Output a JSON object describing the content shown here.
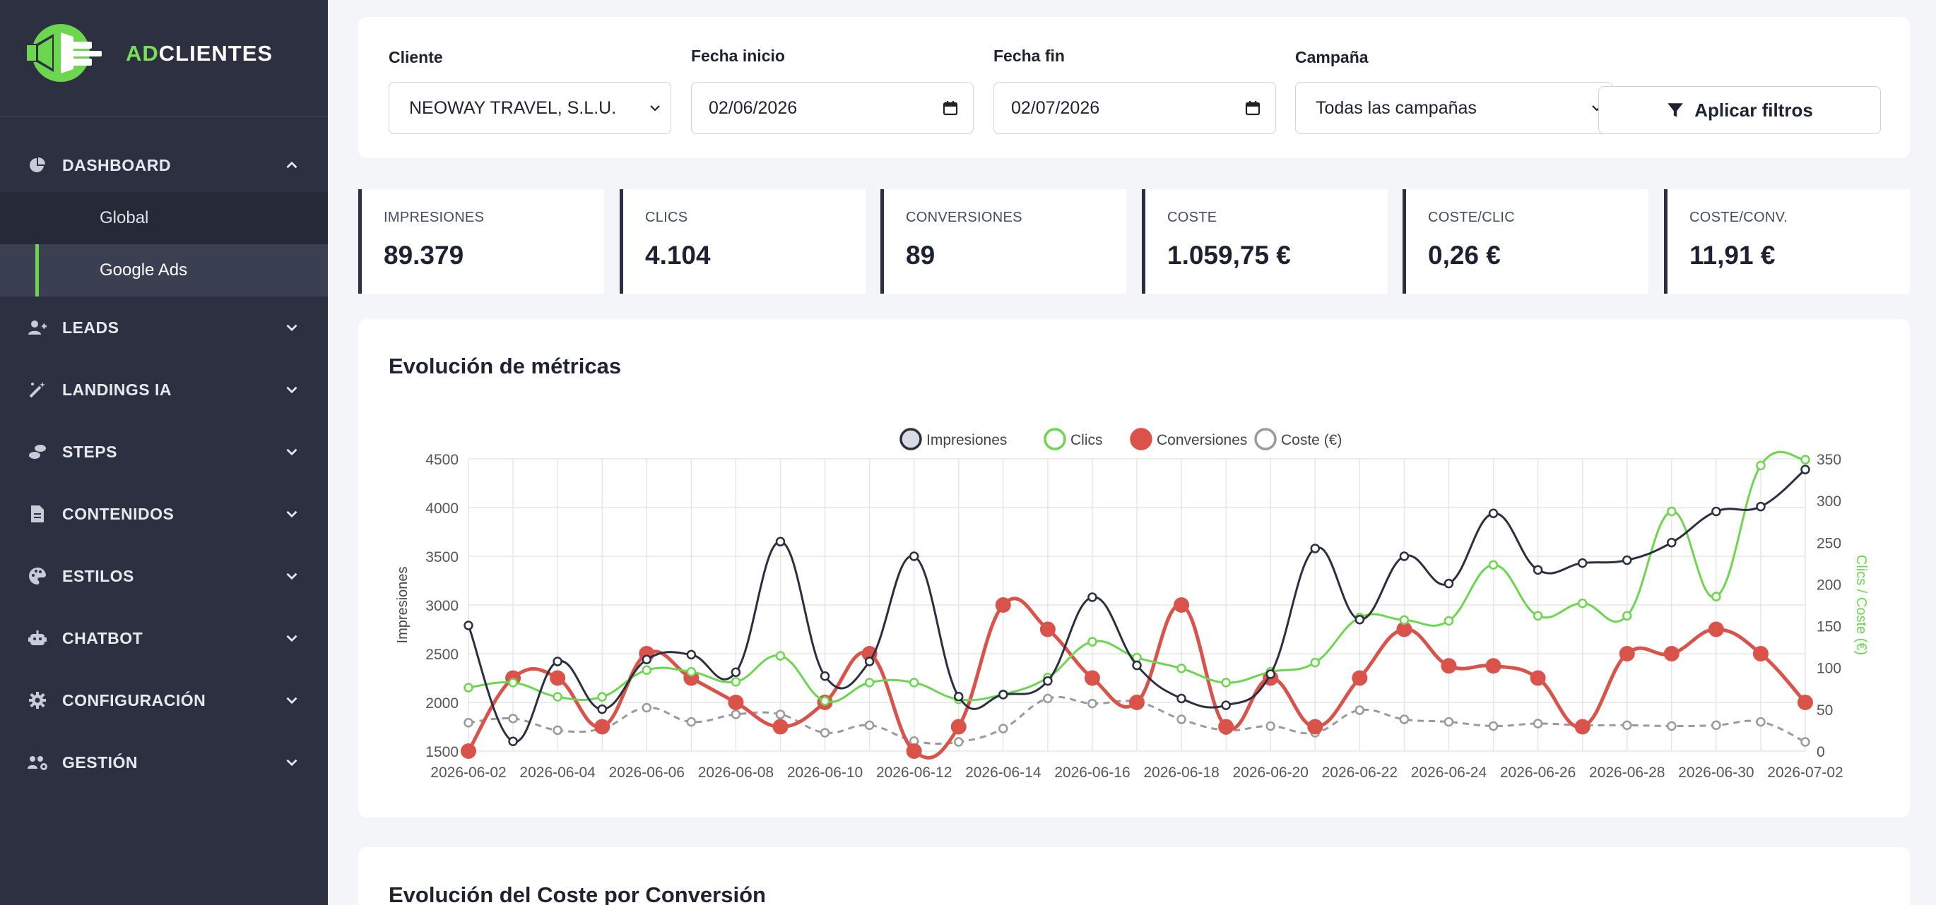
{
  "brand": {
    "prefix": "AD",
    "suffix": "CLIENTES"
  },
  "sidebar": {
    "items": [
      {
        "label": "DASHBOARD",
        "icon": "pie-chart-icon",
        "expanded": true
      },
      {
        "label": "LEADS",
        "icon": "user-plus-icon"
      },
      {
        "label": "LANDINGS IA",
        "icon": "magic-wand-icon"
      },
      {
        "label": "STEPS",
        "icon": "steps-icon"
      },
      {
        "label": "CONTENIDOS",
        "icon": "file-icon"
      },
      {
        "label": "ESTILOS",
        "icon": "palette-icon"
      },
      {
        "label": "CHATBOT",
        "icon": "robot-icon"
      },
      {
        "label": "CONFIGURACIÓN",
        "icon": "gear-icon"
      },
      {
        "label": "GESTIÓN",
        "icon": "users-gear-icon"
      }
    ],
    "dashboard_sub": [
      {
        "label": "Global",
        "active": false
      },
      {
        "label": "Google Ads",
        "active": true
      }
    ]
  },
  "filters": {
    "cliente_label": "Cliente",
    "cliente_value": "NEOWAY TRAVEL, S.L.U.",
    "fecha_inicio_label": "Fecha inicio",
    "fecha_inicio_value": "02/06/2026",
    "fecha_fin_label": "Fecha fin",
    "fecha_fin_value": "02/07/2026",
    "campana_label": "Campaña",
    "campana_value": "Todas las campañas",
    "apply_label": "Aplicar filtros"
  },
  "kpis": [
    {
      "label": "IMPRESIONES",
      "value": "89.379"
    },
    {
      "label": "CLICS",
      "value": "4.104"
    },
    {
      "label": "CONVERSIONES",
      "value": "89"
    },
    {
      "label": "COSTE",
      "value": "1.059,75 €"
    },
    {
      "label": "COSTE/CLIC",
      "value": "0,26 €"
    },
    {
      "label": "COSTE/CONV.",
      "value": "11,91 €"
    }
  ],
  "colors": {
    "accent": "#6cd64f",
    "dark": "#2c3040",
    "impresiones": "#2b2f40",
    "clics": "#6cd64f",
    "conversiones": "#d9534a",
    "coste": "#9a9a9a"
  },
  "chart_title": "Evolución de métricas",
  "chart2_title": "Evolución del Coste por Conversión",
  "chart_data": {
    "type": "line",
    "ylabel": "Impresiones",
    "y2label": "Clics / Coste (€)",
    "ylim": [
      1500,
      4500
    ],
    "y2lim": [
      0,
      350
    ],
    "yticks": [
      1500,
      2000,
      2500,
      3000,
      3500,
      4000,
      4500
    ],
    "y2ticks": [
      0,
      50,
      100,
      150,
      200,
      250,
      300,
      350
    ],
    "legend_position": "top",
    "grid": true,
    "x": [
      "2026-06-02",
      "2026-06-03",
      "2026-06-04",
      "2026-06-05",
      "2026-06-06",
      "2026-06-07",
      "2026-06-08",
      "2026-06-09",
      "2026-06-10",
      "2026-06-11",
      "2026-06-12",
      "2026-06-13",
      "2026-06-14",
      "2026-06-15",
      "2026-06-16",
      "2026-06-17",
      "2026-06-18",
      "2026-06-19",
      "2026-06-20",
      "2026-06-21",
      "2026-06-22",
      "2026-06-23",
      "2026-06-24",
      "2026-06-25",
      "2026-06-26",
      "2026-06-27",
      "2026-06-28",
      "2026-06-29",
      "2026-06-30",
      "2026-07-01",
      "2026-07-02"
    ],
    "xticks": [
      "2026-06-02",
      "2026-06-04",
      "2026-06-06",
      "2026-06-08",
      "2026-06-10",
      "2026-06-12",
      "2026-06-14",
      "2026-06-16",
      "2026-06-18",
      "2026-06-20",
      "2026-06-22",
      "2026-06-24",
      "2026-06-26",
      "2026-06-28",
      "2026-06-30",
      "2026-07-02"
    ],
    "series": [
      {
        "name": "Impresiones",
        "axis": "left",
        "color": "#2b2f40",
        "values": [
          2790,
          1600,
          2420,
          1930,
          2440,
          2490,
          2310,
          3650,
          2270,
          2420,
          3500,
          2060,
          2080,
          2220,
          3080,
          2380,
          2040,
          1970,
          2290,
          3580,
          2850,
          3500,
          3220,
          3940,
          3360,
          3430,
          3460,
          3640,
          3960,
          4010,
          4390
        ]
      },
      {
        "name": "Clics",
        "axis": "right",
        "color": "#6cd64f",
        "values": [
          76,
          82,
          65,
          65,
          97,
          95,
          83,
          114,
          60,
          82,
          82,
          62,
          68,
          88,
          131,
          112,
          99,
          82,
          95,
          106,
          160,
          157,
          156,
          223,
          162,
          177,
          162,
          287,
          185,
          342,
          349
        ]
      },
      {
        "name": "Conversiones",
        "axis": "left",
        "color": "#d9534a",
        "values": [
          1500,
          2250,
          2250,
          1750,
          2500,
          2250,
          2000,
          1750,
          2000,
          2500,
          1500,
          1750,
          3000,
          2750,
          2250,
          2000,
          3000,
          1750,
          2250,
          1750,
          2250,
          2750,
          2375,
          2375,
          2250,
          1750,
          2500,
          2500,
          2750,
          2500,
          2000
        ]
      },
      {
        "name": "Coste (€)",
        "axis": "right",
        "color": "#9a9a9a",
        "values": [
          34,
          39,
          25,
          27,
          52,
          35,
          44,
          44,
          22,
          31,
          12,
          11,
          27,
          63,
          57,
          59,
          38,
          25,
          30,
          22,
          49,
          38,
          35,
          30,
          33,
          31,
          31,
          30,
          31,
          35,
          11
        ]
      }
    ]
  }
}
